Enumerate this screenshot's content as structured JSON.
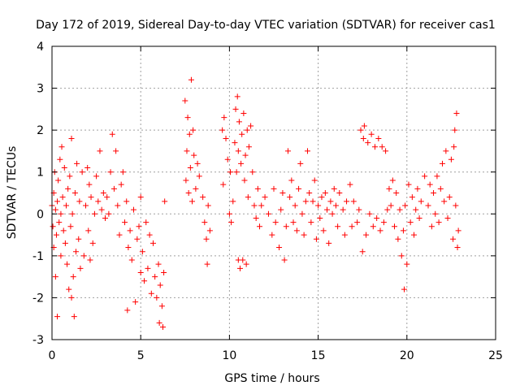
{
  "chart_data": {
    "type": "scatter",
    "title": "Day 172 of 2019, Sidereal Day-to-day VTEC variation (SDTVAR) for receiver cas1",
    "xlabel": "GPS time / hours",
    "ylabel": "SDTVAR / TECUs",
    "xlim": [
      0,
      25
    ],
    "ylim": [
      -3,
      4
    ],
    "xticks": [
      "0",
      "5",
      "10",
      "15",
      "20",
      "25"
    ],
    "yticks": [
      "-3",
      "-2",
      "-1",
      "0",
      "1",
      "2",
      "3",
      "4"
    ],
    "grid": true,
    "marker": "plus",
    "series_color": "#ff0000",
    "series": [
      {
        "name": "SDTVAR",
        "points": [
          [
            0.0,
            0.2
          ],
          [
            0.05,
            -0.3
          ],
          [
            0.1,
            0.5
          ],
          [
            0.1,
            -0.8
          ],
          [
            0.15,
            1.0
          ],
          [
            0.2,
            -1.5
          ],
          [
            0.2,
            0.1
          ],
          [
            0.25,
            -0.5
          ],
          [
            0.3,
            0.3
          ],
          [
            0.3,
            -2.45
          ],
          [
            0.35,
            0.8
          ],
          [
            0.4,
            -0.2
          ],
          [
            0.45,
            1.3
          ],
          [
            0.5,
            0.0
          ],
          [
            0.5,
            -1.0
          ],
          [
            0.55,
            1.6
          ],
          [
            0.6,
            0.4
          ],
          [
            0.65,
            -0.4
          ],
          [
            0.7,
            1.1
          ],
          [
            0.75,
            -0.7
          ],
          [
            0.8,
            0.2
          ],
          [
            0.85,
            -1.2
          ],
          [
            0.9,
            0.6
          ],
          [
            0.95,
            -1.8
          ],
          [
            1.0,
            0.9
          ],
          [
            1.05,
            -0.3
          ],
          [
            1.1,
            1.8
          ],
          [
            1.1,
            -2.0
          ],
          [
            1.15,
            0.0
          ],
          [
            1.2,
            -1.5
          ],
          [
            1.25,
            -2.45
          ],
          [
            1.3,
            0.5
          ],
          [
            1.35,
            -0.9
          ],
          [
            1.4,
            1.2
          ],
          [
            1.5,
            -0.6
          ],
          [
            1.55,
            0.3
          ],
          [
            1.6,
            -1.3
          ],
          [
            1.7,
            1.0
          ],
          [
            1.8,
            -1.0
          ],
          [
            1.9,
            0.2
          ],
          [
            2.0,
            1.1
          ],
          [
            2.05,
            -0.4
          ],
          [
            2.1,
            0.7
          ],
          [
            2.15,
            -1.1
          ],
          [
            2.2,
            0.4
          ],
          [
            2.3,
            -0.7
          ],
          [
            2.4,
            0.0
          ],
          [
            2.5,
            0.9
          ],
          [
            2.6,
            0.3
          ],
          [
            2.7,
            1.5
          ],
          [
            2.8,
            0.1
          ],
          [
            2.9,
            0.5
          ],
          [
            3.0,
            -0.1
          ],
          [
            3.1,
            0.4
          ],
          [
            3.2,
            0.0
          ],
          [
            3.3,
            1.0
          ],
          [
            3.4,
            1.9
          ],
          [
            3.5,
            0.6
          ],
          [
            3.6,
            1.5
          ],
          [
            3.7,
            0.2
          ],
          [
            3.8,
            -0.5
          ],
          [
            3.9,
            0.7
          ],
          [
            4.0,
            1.0
          ],
          [
            4.1,
            -0.2
          ],
          [
            4.2,
            0.3
          ],
          [
            4.25,
            -2.3
          ],
          [
            4.3,
            -0.8
          ],
          [
            4.4,
            -0.4
          ],
          [
            4.5,
            -1.1
          ],
          [
            4.6,
            0.1
          ],
          [
            4.7,
            -2.1
          ],
          [
            4.8,
            -0.6
          ],
          [
            4.9,
            -0.3
          ],
          [
            5.0,
            -1.4
          ],
          [
            5.0,
            0.4
          ],
          [
            5.1,
            -0.9
          ],
          [
            5.2,
            -1.6
          ],
          [
            5.3,
            -0.2
          ],
          [
            5.4,
            -1.3
          ],
          [
            5.5,
            -0.5
          ],
          [
            5.6,
            -1.9
          ],
          [
            5.7,
            -0.7
          ],
          [
            5.8,
            -1.5
          ],
          [
            5.9,
            -2.0
          ],
          [
            6.0,
            -1.2
          ],
          [
            6.05,
            -2.6
          ],
          [
            6.1,
            -1.7
          ],
          [
            6.2,
            -2.2
          ],
          [
            6.25,
            -2.7
          ],
          [
            6.3,
            -1.4
          ],
          [
            6.35,
            0.3
          ],
          [
            7.5,
            2.7
          ],
          [
            7.55,
            0.8
          ],
          [
            7.6,
            1.5
          ],
          [
            7.65,
            2.3
          ],
          [
            7.7,
            0.5
          ],
          [
            7.75,
            1.9
          ],
          [
            7.8,
            1.1
          ],
          [
            7.85,
            3.2
          ],
          [
            7.9,
            0.3
          ],
          [
            7.95,
            2.0
          ],
          [
            8.0,
            1.4
          ],
          [
            8.1,
            0.6
          ],
          [
            8.2,
            1.2
          ],
          [
            8.3,
            0.9
          ],
          [
            8.5,
            0.4
          ],
          [
            8.6,
            -0.2
          ],
          [
            8.7,
            -0.6
          ],
          [
            8.75,
            -1.2
          ],
          [
            8.8,
            0.2
          ],
          [
            8.9,
            -0.4
          ],
          [
            9.6,
            2.0
          ],
          [
            9.65,
            0.7
          ],
          [
            9.7,
            2.3
          ],
          [
            9.8,
            1.8
          ],
          [
            9.9,
            1.3
          ],
          [
            10.0,
            0.0
          ],
          [
            10.05,
            1.0
          ],
          [
            10.1,
            -0.2
          ],
          [
            10.2,
            0.3
          ],
          [
            10.3,
            1.7
          ],
          [
            10.35,
            2.5
          ],
          [
            10.4,
            1.0
          ],
          [
            10.45,
            2.8
          ],
          [
            10.5,
            1.5
          ],
          [
            10.5,
            -1.1
          ],
          [
            10.55,
            2.2
          ],
          [
            10.6,
            -1.3
          ],
          [
            10.65,
            1.2
          ],
          [
            10.7,
            1.9
          ],
          [
            10.75,
            -1.1
          ],
          [
            10.8,
            2.4
          ],
          [
            10.85,
            0.8
          ],
          [
            10.9,
            1.4
          ],
          [
            10.95,
            -1.2
          ],
          [
            11.0,
            2.0
          ],
          [
            11.05,
            0.4
          ],
          [
            11.1,
            1.6
          ],
          [
            11.2,
            2.1
          ],
          [
            11.3,
            1.0
          ],
          [
            11.4,
            0.2
          ],
          [
            11.5,
            -0.1
          ],
          [
            11.6,
            0.6
          ],
          [
            11.7,
            -0.3
          ],
          [
            11.8,
            0.2
          ],
          [
            12.0,
            0.4
          ],
          [
            12.2,
            0.0
          ],
          [
            12.4,
            -0.5
          ],
          [
            12.5,
            0.6
          ],
          [
            12.6,
            -0.2
          ],
          [
            12.8,
            -0.8
          ],
          [
            12.9,
            0.1
          ],
          [
            13.0,
            0.5
          ],
          [
            13.1,
            -1.1
          ],
          [
            13.2,
            -0.3
          ],
          [
            13.3,
            1.5
          ],
          [
            13.4,
            0.4
          ],
          [
            13.5,
            0.8
          ],
          [
            13.6,
            -0.2
          ],
          [
            13.7,
            0.2
          ],
          [
            13.8,
            -0.4
          ],
          [
            13.9,
            0.6
          ],
          [
            14.0,
            1.2
          ],
          [
            14.1,
            0.0
          ],
          [
            14.2,
            -0.5
          ],
          [
            14.3,
            0.3
          ],
          [
            14.4,
            1.5
          ],
          [
            14.5,
            0.5
          ],
          [
            14.6,
            -0.2
          ],
          [
            14.7,
            0.3
          ],
          [
            14.8,
            0.8
          ],
          [
            14.9,
            -0.6
          ],
          [
            15.0,
            0.2
          ],
          [
            15.1,
            -0.1
          ],
          [
            15.2,
            0.4
          ],
          [
            15.3,
            -0.4
          ],
          [
            15.4,
            0.5
          ],
          [
            15.5,
            0.1
          ],
          [
            15.6,
            -0.7
          ],
          [
            15.7,
            0.3
          ],
          [
            15.8,
            0.0
          ],
          [
            15.9,
            0.6
          ],
          [
            16.0,
            0.2
          ],
          [
            16.1,
            -0.3
          ],
          [
            16.2,
            0.5
          ],
          [
            16.4,
            0.1
          ],
          [
            16.5,
            -0.5
          ],
          [
            16.6,
            0.3
          ],
          [
            16.8,
            0.7
          ],
          [
            16.9,
            -0.3
          ],
          [
            17.0,
            0.3
          ],
          [
            17.2,
            -0.2
          ],
          [
            17.3,
            0.1
          ],
          [
            17.4,
            2.0
          ],
          [
            17.5,
            -0.9
          ],
          [
            17.55,
            1.8
          ],
          [
            17.6,
            2.1
          ],
          [
            17.7,
            -0.5
          ],
          [
            17.8,
            1.7
          ],
          [
            17.9,
            0.0
          ],
          [
            18.0,
            1.9
          ],
          [
            18.1,
            -0.3
          ],
          [
            18.2,
            1.6
          ],
          [
            18.3,
            -0.1
          ],
          [
            18.4,
            1.8
          ],
          [
            18.5,
            -0.4
          ],
          [
            18.6,
            1.6
          ],
          [
            18.7,
            -0.2
          ],
          [
            18.8,
            1.5
          ],
          [
            18.9,
            0.1
          ],
          [
            19.0,
            0.6
          ],
          [
            19.1,
            0.2
          ],
          [
            19.2,
            0.8
          ],
          [
            19.3,
            -0.3
          ],
          [
            19.4,
            0.5
          ],
          [
            19.5,
            -0.6
          ],
          [
            19.6,
            0.1
          ],
          [
            19.7,
            -1.0
          ],
          [
            19.8,
            -0.4
          ],
          [
            19.85,
            -1.8
          ],
          [
            19.9,
            0.2
          ],
          [
            20.0,
            -1.2
          ],
          [
            20.1,
            0.7
          ],
          [
            20.2,
            -0.2
          ],
          [
            20.3,
            0.4
          ],
          [
            20.4,
            -0.5
          ],
          [
            20.5,
            0.1
          ],
          [
            20.6,
            0.6
          ],
          [
            20.7,
            -0.1
          ],
          [
            20.8,
            0.3
          ],
          [
            21.0,
            0.9
          ],
          [
            21.2,
            0.2
          ],
          [
            21.3,
            0.7
          ],
          [
            21.4,
            -0.3
          ],
          [
            21.5,
            0.5
          ],
          [
            21.6,
            0.0
          ],
          [
            21.7,
            0.9
          ],
          [
            21.8,
            -0.2
          ],
          [
            21.9,
            0.6
          ],
          [
            22.0,
            1.2
          ],
          [
            22.1,
            0.3
          ],
          [
            22.2,
            1.5
          ],
          [
            22.3,
            -0.1
          ],
          [
            22.4,
            0.4
          ],
          [
            22.5,
            1.3
          ],
          [
            22.6,
            -0.6
          ],
          [
            22.65,
            1.6
          ],
          [
            22.7,
            2.0
          ],
          [
            22.75,
            0.2
          ],
          [
            22.8,
            2.4
          ],
          [
            22.85,
            -0.8
          ],
          [
            22.9,
            -0.4
          ]
        ]
      }
    ]
  }
}
